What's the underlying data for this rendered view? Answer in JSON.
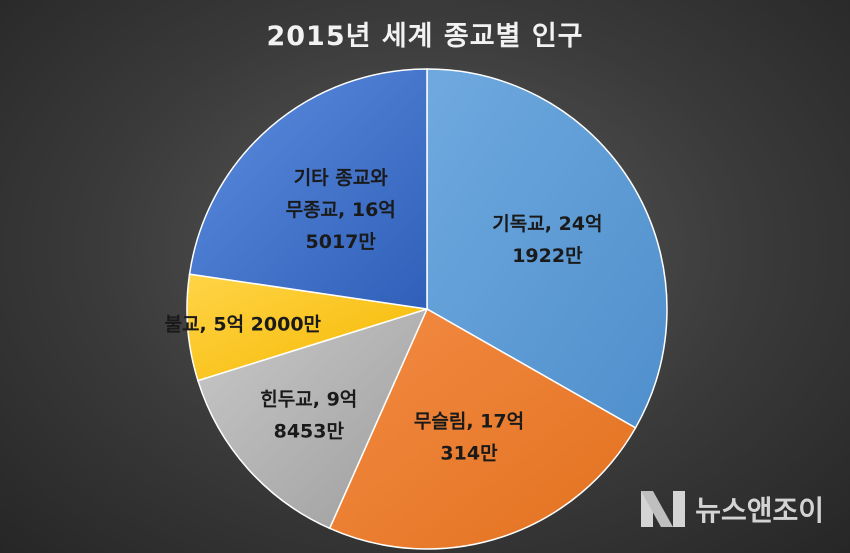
{
  "chart_data": {
    "type": "pie",
    "title": "2015년 세계 종교별 인구",
    "slices": [
      {
        "label": "기독교, 24억 1922만",
        "line1": "기독교, 24억",
        "line2": "1922만",
        "value": 2419.22,
        "color": "#5b9bd5"
      },
      {
        "label": "무슬림, 17억 314만",
        "line1": "무슬림, 17억",
        "line2": "314만",
        "value": 1703.14,
        "color": "#ed7d31"
      },
      {
        "label": "힌두교, 9억 8453만",
        "line1": "힌두교, 9억",
        "line2": "8453만",
        "value": 984.53,
        "color": "#a5a5a5"
      },
      {
        "label": "불교, 5억 2000만",
        "line1": "불교, 5억 2000만",
        "line2": "",
        "value": 520.0,
        "color": "#ffc000"
      },
      {
        "label": "기타 종교와 무종교, 16억 5017만",
        "line1": "기타 종교와",
        "line2": "무종교, 16억",
        "line3": "5017만",
        "value": 1650.17,
        "color": "#4472c4"
      }
    ],
    "unit": "만"
  },
  "watermark": {
    "text": "뉴스앤조이"
  }
}
